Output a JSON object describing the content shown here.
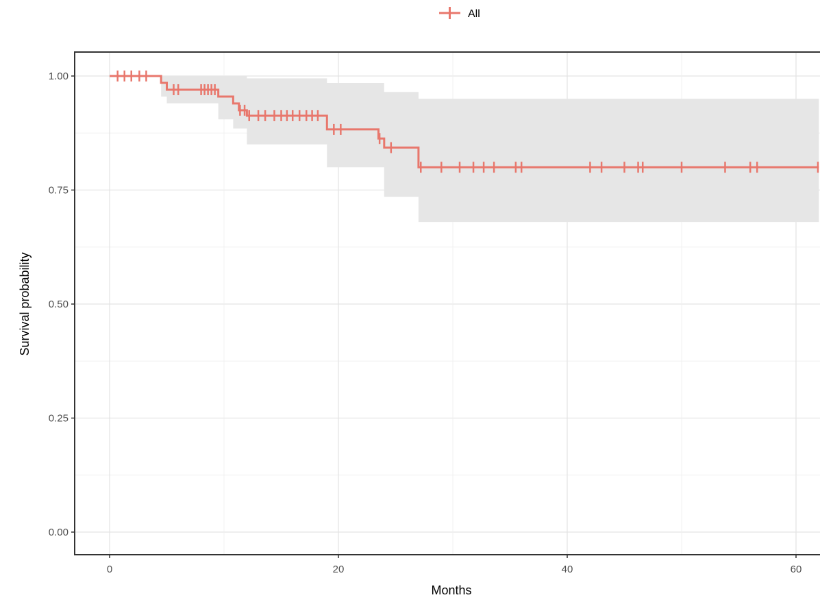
{
  "chart_data": {
    "type": "line",
    "subtype": "kaplan-meier step survival curve with confidence band and censor marks",
    "xlabel": "Months",
    "ylabel": "Survival probability",
    "xlim": [
      -3,
      62
    ],
    "ylim": [
      -0.05,
      1.05
    ],
    "x_ticks": [
      0,
      20,
      40,
      60
    ],
    "x_tick_labels": [
      "0",
      "20",
      "40",
      "60"
    ],
    "y_ticks": [
      0,
      0.25,
      0.5,
      0.75,
      1.0
    ],
    "y_tick_labels": [
      "0.00",
      "0.25",
      "0.50",
      "0.75",
      "1.00"
    ],
    "grid": true,
    "legend": {
      "position": "top",
      "entries": [
        "All"
      ]
    },
    "series": [
      {
        "name": "All",
        "color": "#E8776C",
        "step_points": [
          {
            "x": 0,
            "y": 1.0
          },
          {
            "x": 4.5,
            "y": 0.985
          },
          {
            "x": 5.0,
            "y": 0.97
          },
          {
            "x": 9.5,
            "y": 0.955
          },
          {
            "x": 10.8,
            "y": 0.94
          },
          {
            "x": 11.3,
            "y": 0.925
          },
          {
            "x": 12.0,
            "y": 0.913
          },
          {
            "x": 19.0,
            "y": 0.883
          },
          {
            "x": 23.5,
            "y": 0.863
          },
          {
            "x": 24.0,
            "y": 0.843
          },
          {
            "x": 27.0,
            "y": 0.8
          },
          {
            "x": 62,
            "y": 0.8
          }
        ],
        "ci_band": [
          {
            "x": 0,
            "lower": 1.0,
            "upper": 1.0
          },
          {
            "x": 4.5,
            "lower": 0.955,
            "upper": 1.0
          },
          {
            "x": 5.0,
            "lower": 0.94,
            "upper": 1.0
          },
          {
            "x": 9.5,
            "lower": 0.905,
            "upper": 1.0
          },
          {
            "x": 10.8,
            "lower": 0.885,
            "upper": 1.0
          },
          {
            "x": 12.0,
            "lower": 0.85,
            "upper": 0.995
          },
          {
            "x": 19.0,
            "lower": 0.8,
            "upper": 0.985
          },
          {
            "x": 24.0,
            "lower": 0.735,
            "upper": 0.965
          },
          {
            "x": 27.0,
            "lower": 0.68,
            "upper": 0.95
          },
          {
            "x": 62,
            "lower": 0.68,
            "upper": 0.95
          }
        ],
        "censor_times": [
          0.7,
          1.3,
          1.9,
          2.6,
          3.2,
          5.6,
          6.0,
          8.0,
          8.3,
          8.6,
          8.9,
          9.2,
          11.4,
          11.8,
          12.2,
          13.0,
          13.6,
          14.4,
          15.0,
          15.5,
          16.0,
          16.6,
          17.2,
          17.7,
          18.2,
          19.6,
          20.2,
          23.6,
          24.6,
          27.2,
          29.0,
          30.6,
          31.8,
          32.7,
          33.6,
          35.5,
          36.0,
          42.0,
          43.0,
          45.0,
          46.2,
          46.6,
          50.0,
          53.8,
          56.0,
          56.6,
          62.0
        ]
      }
    ]
  }
}
